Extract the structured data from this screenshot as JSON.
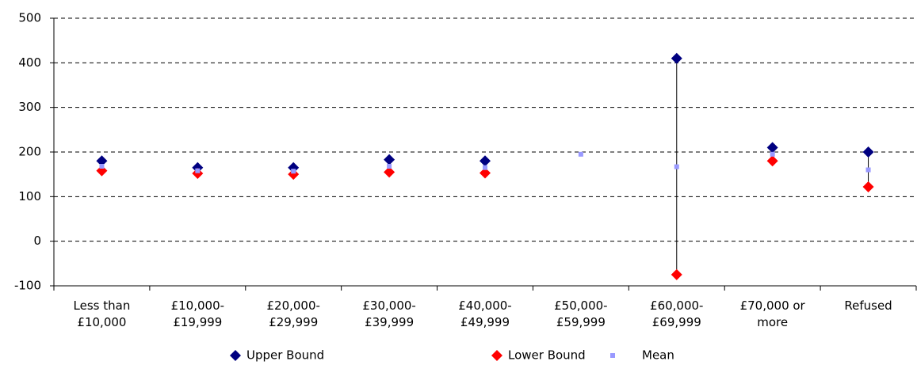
{
  "chart_data": {
    "type": "scatter",
    "categories": [
      "Less than £10,000",
      "£10,000-£19,999",
      "£20,000-£29,999",
      "£30,000-£39,999",
      "£40,000-£49,999",
      "£50,000-£59,999",
      "£60,000-£69,999",
      "£70,000 or more",
      "Refused"
    ],
    "series": [
      {
        "name": "Upper Bound",
        "color": "#000080",
        "marker": "diamond",
        "values": [
          180,
          165,
          165,
          183,
          180,
          null,
          410,
          210,
          200
        ]
      },
      {
        "name": "Lower Bound",
        "color": "#ff0000",
        "marker": "diamond",
        "values": [
          158,
          152,
          150,
          155,
          153,
          null,
          -75,
          180,
          122
        ]
      },
      {
        "name": "Mean",
        "color": "#9999ff",
        "marker": "square",
        "values": [
          168,
          158,
          157,
          168,
          165,
          195,
          167,
          195,
          160
        ]
      }
    ],
    "ylim": [
      -100,
      500
    ],
    "yticks": [
      -100,
      0,
      100,
      200,
      300,
      400,
      500
    ],
    "grid": true,
    "legend": "bottom"
  }
}
